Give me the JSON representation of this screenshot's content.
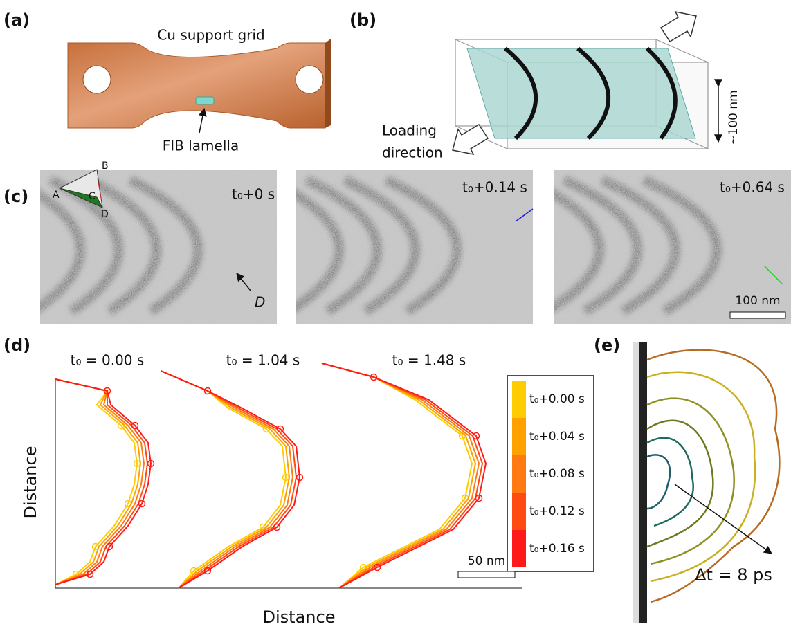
{
  "panels": {
    "a": {
      "label": "(a)",
      "grid_label": "Cu support grid",
      "lamella_label": "FIB lamella"
    },
    "b": {
      "label": "(b)",
      "loading_label": [
        "Loading",
        "direction"
      ],
      "thickness_label": "~100 nm"
    },
    "c": {
      "label": "(c)",
      "orientation": [
        "A",
        "B",
        "C",
        "D"
      ],
      "frames": [
        "t₀+0 s",
        "t₀+0.14 s",
        "t₀+0.64 s"
      ],
      "dislocation_label": "D",
      "scale_bar": "100 nm"
    },
    "d": {
      "label": "(d)",
      "titles": [
        "t₀ = 0.00 s",
        "t₀ = 1.04 s",
        "t₀ = 1.48 s"
      ],
      "legend": [
        {
          "label": "t₀+0.00 s",
          "color": "#ffcc00"
        },
        {
          "label": "t₀+0.04 s",
          "color": "#ffa200"
        },
        {
          "label": "t₀+0.08 s",
          "color": "#ff7a12"
        },
        {
          "label": "t₀+0.12 s",
          "color": "#ff4a12"
        },
        {
          "label": "t₀+0.16 s",
          "color": "#ff1a1a"
        }
      ],
      "scale_bar": "50 nm",
      "y_label": "Distance",
      "x_label": "Distance"
    },
    "e": {
      "label": "(e)",
      "interval_label": "Δt = 8 ps"
    }
  }
}
